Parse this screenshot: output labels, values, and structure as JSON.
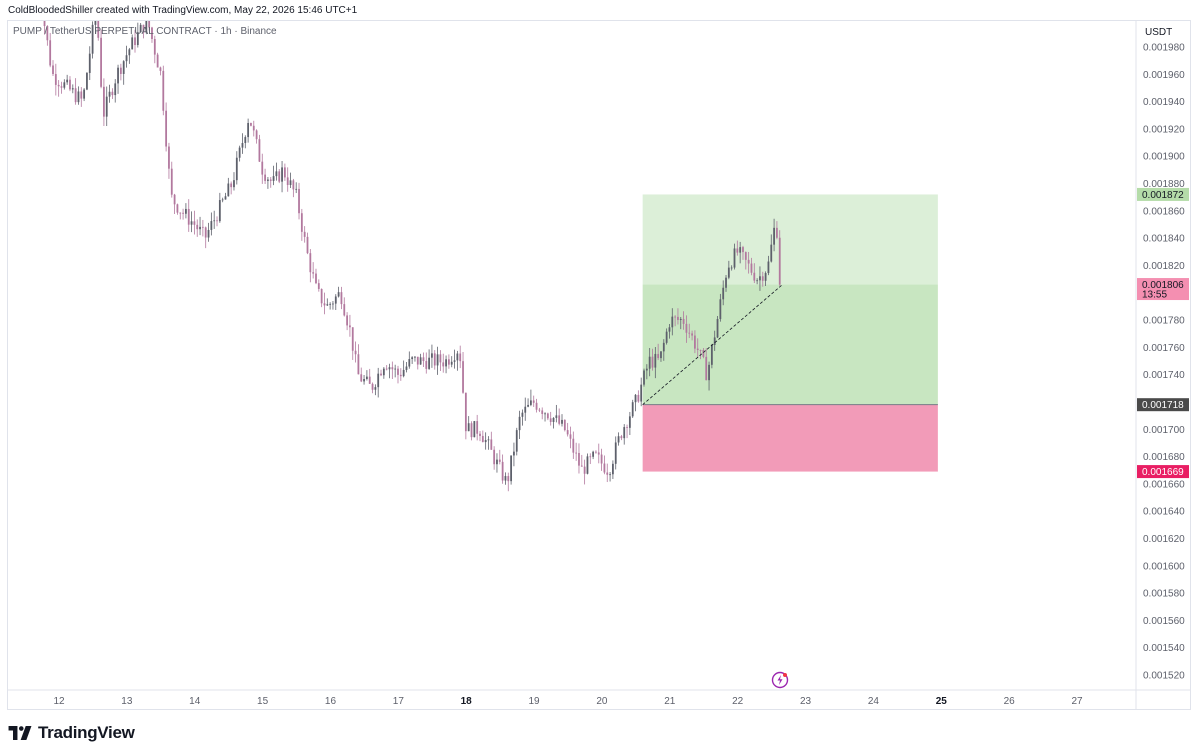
{
  "header": {
    "credit": "ColdBloodedShiller created with TradingView.com, May 22, 2026 15:46 UTC+1"
  },
  "chart": {
    "legend": "PUMP / TetherUS PERPETUAL CONTRACT · 1h · Binance",
    "currency": "USDT"
  },
  "footer": {
    "brand": "TradingView"
  },
  "colors": {
    "up_candle": "#5d606b",
    "down_candle": "#b2789e",
    "profit_zone": "#c8e6c1",
    "profit_zone_upper": "#dcefd8",
    "loss_zone": "#f29bb8",
    "target_label": "#b5dca9",
    "current_label": "#f48fb1",
    "entry_label": "#4a4a4a",
    "stop_label": "#e91e63"
  },
  "chart_data": {
    "type": "candlestick",
    "symbol": "PUMP / TetherUS PERPETUAL CONTRACT",
    "interval": "1h",
    "exchange": "Binance",
    "y_axis": {
      "ticks": [
        "0.001520",
        "0.001540",
        "0.001560",
        "0.001580",
        "0.001600",
        "0.001620",
        "0.001640",
        "0.001660",
        "0.001680",
        "0.001700",
        "0.001720",
        "0.001740",
        "0.001760",
        "0.001780",
        "0.001800",
        "0.001820",
        "0.001840",
        "0.001860",
        "0.001880",
        "0.001900",
        "0.001920",
        "0.001940",
        "0.001960",
        "0.001980"
      ],
      "ylim": [
        0.001506,
        0.002003
      ]
    },
    "x_axis": {
      "ticks": [
        "12",
        "13",
        "14",
        "15",
        "16",
        "17",
        "18",
        "19",
        "20",
        "21",
        "22",
        "23",
        "24",
        "25",
        "26",
        "27"
      ],
      "bold_ticks": [
        "18",
        "25"
      ],
      "range_days": [
        11.55,
        27.83
      ]
    },
    "position": {
      "type": "long",
      "entry": 0.001718,
      "target": 0.001872,
      "stop": 0.001669,
      "current": 0.001806,
      "countdown": "13:55",
      "start_day": 20.6,
      "end_day": 24.95
    },
    "labels": {
      "target": "0.001872",
      "current": "0.001806",
      "entry": "0.001718",
      "stop": "0.001669"
    },
    "path_waypoints": [
      [
        11.62,
        0.00205
      ],
      [
        11.9,
        0.00196
      ],
      [
        12.35,
        0.00194
      ],
      [
        12.55,
        0.00201
      ],
      [
        12.65,
        0.00193
      ],
      [
        12.85,
        0.00196
      ],
      [
        13.05,
        0.00198
      ],
      [
        13.3,
        0.002
      ],
      [
        13.5,
        0.00196
      ],
      [
        13.65,
        0.00187
      ],
      [
        13.8,
        0.00186
      ],
      [
        14.0,
        0.00185
      ],
      [
        14.15,
        0.00184
      ],
      [
        14.35,
        0.00186
      ],
      [
        14.55,
        0.00188
      ],
      [
        14.8,
        0.00193
      ],
      [
        15.0,
        0.00189
      ],
      [
        15.15,
        0.00188
      ],
      [
        15.3,
        0.00189
      ],
      [
        15.5,
        0.00187
      ],
      [
        15.65,
        0.00183
      ],
      [
        15.8,
        0.0018
      ],
      [
        15.95,
        0.00179
      ],
      [
        16.15,
        0.0018
      ],
      [
        16.3,
        0.00177
      ],
      [
        16.4,
        0.00174
      ],
      [
        16.6,
        0.00173
      ],
      [
        16.8,
        0.00175
      ],
      [
        17.0,
        0.00174
      ],
      [
        17.2,
        0.00175
      ],
      [
        17.45,
        0.00175
      ],
      [
        17.7,
        0.00175
      ],
      [
        17.9,
        0.00176
      ],
      [
        18.0,
        0.0017
      ],
      [
        18.2,
        0.0017
      ],
      [
        18.4,
        0.00168
      ],
      [
        18.6,
        0.00166
      ],
      [
        18.8,
        0.00171
      ],
      [
        19.0,
        0.00172
      ],
      [
        19.25,
        0.00171
      ],
      [
        19.45,
        0.0017
      ],
      [
        19.7,
        0.00167
      ],
      [
        19.9,
        0.00168
      ],
      [
        20.1,
        0.00167
      ],
      [
        20.3,
        0.0017
      ],
      [
        20.5,
        0.00172
      ],
      [
        20.7,
        0.00175
      ],
      [
        20.85,
        0.00175
      ],
      [
        21.0,
        0.00178
      ],
      [
        21.2,
        0.00178
      ],
      [
        21.4,
        0.00176
      ],
      [
        21.55,
        0.00174
      ],
      [
        21.7,
        0.00178
      ],
      [
        21.85,
        0.00182
      ],
      [
        22.0,
        0.00183
      ],
      [
        22.15,
        0.00182
      ],
      [
        22.3,
        0.00181
      ],
      [
        22.45,
        0.00182
      ],
      [
        22.55,
        0.00185
      ],
      [
        22.62,
        0.00184
      ],
      [
        22.66,
        0.001806
      ]
    ]
  }
}
